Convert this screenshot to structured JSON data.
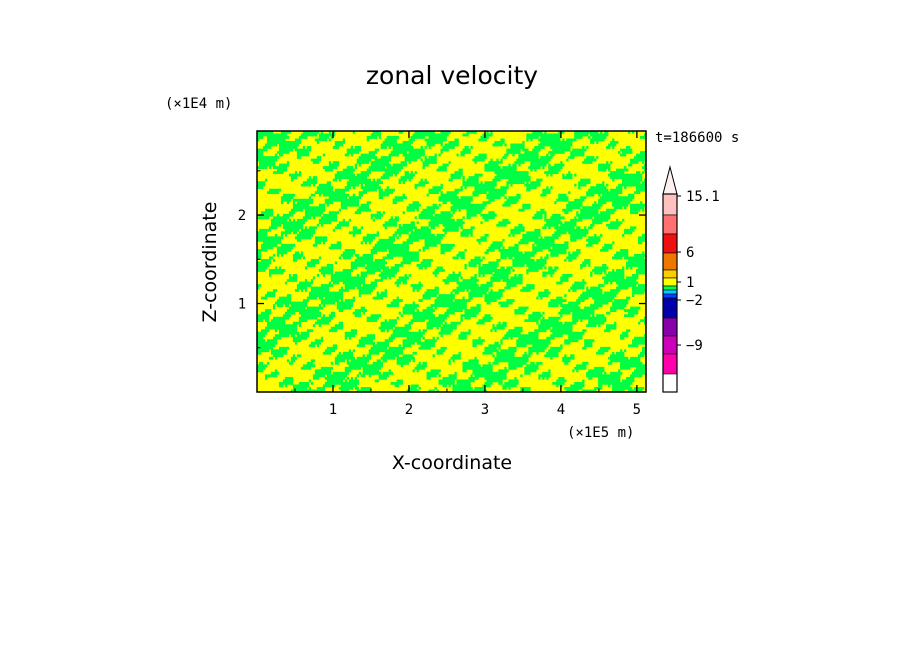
{
  "chart_data": {
    "type": "heatmap",
    "title": "zonal velocity",
    "xlabel": "X-coordinate",
    "ylabel": "Z-coordinate",
    "x_multiplier": "(×1E5 m)",
    "y_multiplier": "(×1E4 m)",
    "time_label": "t=186600 s",
    "xlim": [
      0,
      5.12
    ],
    "ylim": [
      0,
      2.95
    ],
    "x_ticks": [
      "1",
      "2",
      "3",
      "4",
      "5"
    ],
    "y_ticks": [
      "1",
      "2"
    ],
    "x_tick_values": [
      1,
      2,
      3,
      4,
      5
    ],
    "y_tick_values": [
      1,
      2
    ],
    "dominant_colors": [
      "#ffff00",
      "#00ff44"
    ],
    "colorbar": {
      "labels": [
        "15.1",
        "6",
        "1",
        "−2",
        "−9"
      ],
      "label_values": [
        15.1,
        6,
        1,
        -2,
        -9
      ],
      "colors_top_to_bottom": [
        "#ffc0c0",
        "#ff7070",
        "#ee1010",
        "#ee7700",
        "#ffcc00",
        "#ffff00",
        "#00ff44",
        "#00ccff",
        "#0044ff",
        "#0000aa",
        "#8800aa",
        "#cc00bb",
        "#ff00aa"
      ],
      "extend": "max"
    }
  }
}
